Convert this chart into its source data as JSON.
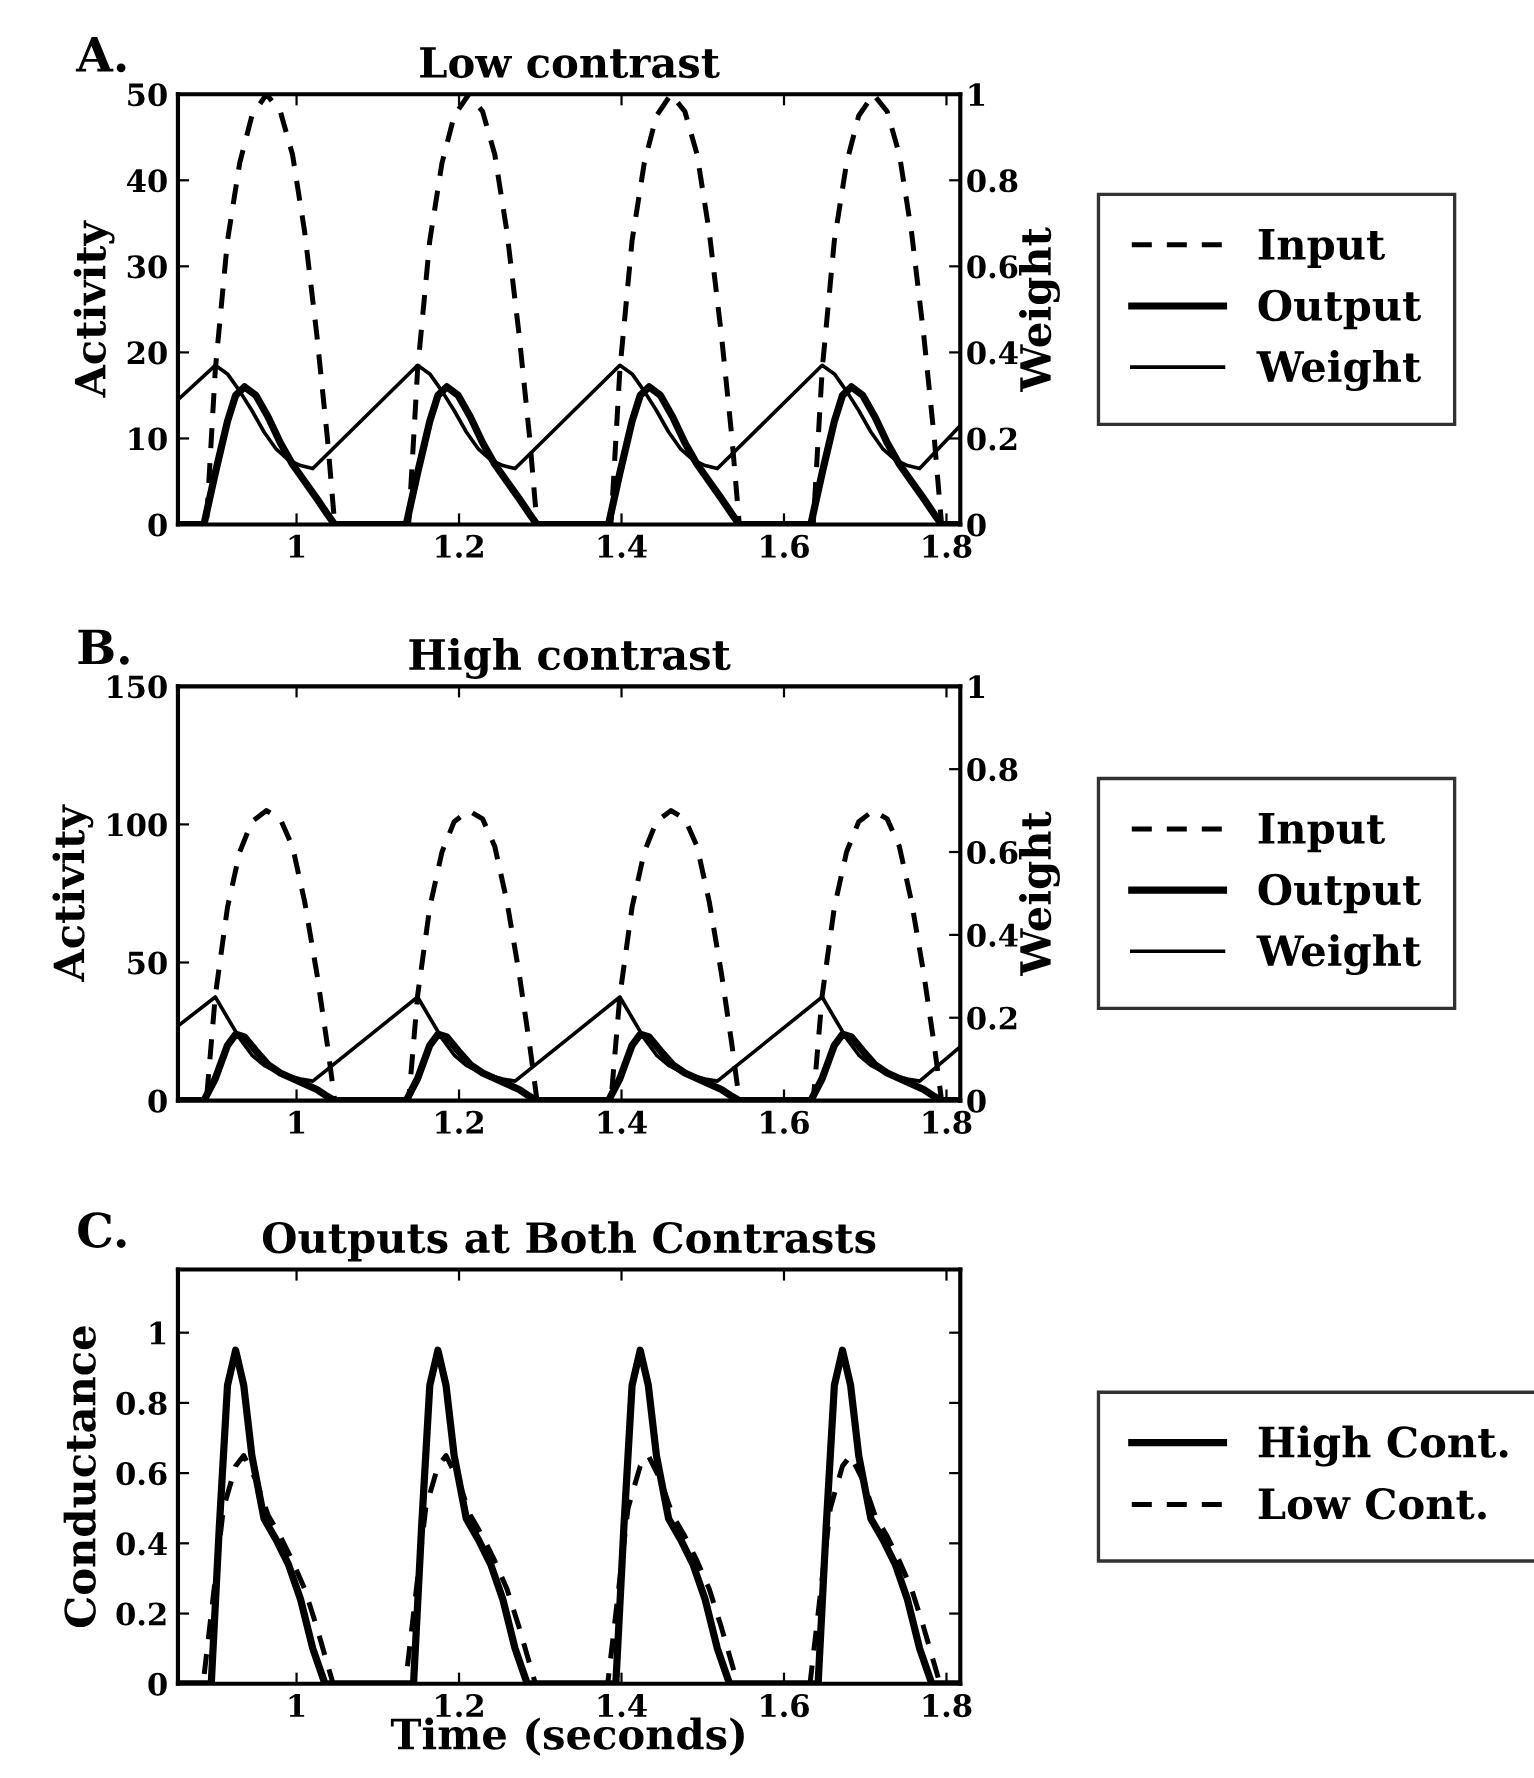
{
  "chart_data": [
    {
      "type": "line",
      "title": "Low contrast",
      "ylabel": "Activity",
      "y2label": "Weight",
      "annotations": [
        "A."
      ],
      "xlim": [
        0.854,
        1.817
      ],
      "xticks": [
        1,
        1.2,
        1.4,
        1.6,
        1.8
      ],
      "ylim": [
        0,
        50
      ],
      "yticks": [
        0,
        10,
        20,
        30,
        40,
        50
      ],
      "y2lim": [
        0,
        1
      ],
      "y2ticks": [
        0,
        0.2,
        0.4,
        0.6,
        0.8,
        1
      ],
      "grid": false,
      "legend": "right",
      "series": [
        {
          "name": "Input",
          "color": "#000000",
          "line_style": "dashed",
          "x": [
            0.854,
            0.889,
            0.9,
            0.915,
            0.93,
            0.945,
            0.963,
            0.98,
            0.995,
            1.01,
            1.025,
            1.038,
            1.047,
            1.138,
            1.149,
            1.164,
            1.179,
            1.194,
            1.212,
            1.229,
            1.244,
            1.259,
            1.274,
            1.287,
            1.296,
            1.387,
            1.398,
            1.413,
            1.428,
            1.443,
            1.461,
            1.478,
            1.493,
            1.508,
            1.523,
            1.536,
            1.545,
            1.636,
            1.647,
            1.662,
            1.677,
            1.692,
            1.71,
            1.727,
            1.742,
            1.757,
            1.772,
            1.785,
            1.794,
            1.817
          ],
          "values": [
            0,
            0,
            18,
            33,
            42,
            47.5,
            50,
            48,
            43,
            34,
            22,
            10,
            0,
            0,
            18,
            33,
            42,
            47.5,
            50,
            48,
            43,
            34,
            22,
            10,
            0,
            0,
            18,
            33,
            42,
            47.5,
            50,
            48,
            43,
            34,
            22,
            10,
            0,
            0,
            18,
            33,
            42,
            47.5,
            50,
            48,
            43,
            34,
            22,
            10,
            0,
            0
          ]
        },
        {
          "name": "Output",
          "color": "#000000",
          "line_style": "solid",
          "x": [
            0.854,
            0.886,
            0.9,
            0.915,
            0.925,
            0.936,
            0.95,
            0.965,
            0.98,
            0.995,
            1.01,
            1.025,
            1.038,
            1.047,
            1.135,
            1.149,
            1.164,
            1.174,
            1.185,
            1.199,
            1.214,
            1.229,
            1.244,
            1.259,
            1.274,
            1.287,
            1.296,
            1.384,
            1.398,
            1.413,
            1.423,
            1.434,
            1.448,
            1.463,
            1.478,
            1.493,
            1.508,
            1.523,
            1.536,
            1.545,
            1.633,
            1.647,
            1.662,
            1.672,
            1.683,
            1.697,
            1.712,
            1.727,
            1.742,
            1.757,
            1.772,
            1.785,
            1.794,
            1.817
          ],
          "values": [
            0,
            0,
            6,
            12,
            15,
            16,
            15,
            12.5,
            9.5,
            7,
            5,
            3,
            1.2,
            0,
            0,
            6,
            12,
            15,
            16,
            15,
            12.5,
            9.5,
            7,
            5,
            3,
            1.2,
            0,
            0,
            6,
            12,
            15,
            16,
            15,
            12.5,
            9.5,
            7,
            5,
            3,
            1.2,
            0,
            0,
            6,
            12,
            15,
            16,
            15,
            12.5,
            9.5,
            7,
            5,
            3,
            1.2,
            0,
            0
          ]
        },
        {
          "name": "Weight",
          "color": "#000000",
          "line_style": "solid",
          "axis": "y2",
          "x": [
            0.854,
            0.9,
            0.915,
            0.93,
            0.945,
            0.96,
            0.975,
            0.99,
            1.005,
            1.02,
            1.149,
            1.164,
            1.179,
            1.194,
            1.209,
            1.224,
            1.239,
            1.254,
            1.269,
            1.398,
            1.413,
            1.428,
            1.443,
            1.458,
            1.473,
            1.488,
            1.503,
            1.518,
            1.647,
            1.662,
            1.677,
            1.692,
            1.707,
            1.722,
            1.737,
            1.752,
            1.767,
            1.817
          ],
          "values": [
            0.29,
            0.37,
            0.35,
            0.31,
            0.265,
            0.215,
            0.175,
            0.15,
            0.137,
            0.13,
            0.37,
            0.35,
            0.31,
            0.265,
            0.215,
            0.175,
            0.15,
            0.137,
            0.13,
            0.37,
            0.35,
            0.31,
            0.265,
            0.215,
            0.175,
            0.15,
            0.137,
            0.13,
            0.37,
            0.35,
            0.31,
            0.265,
            0.215,
            0.175,
            0.15,
            0.137,
            0.13,
            0.23
          ]
        }
      ]
    },
    {
      "type": "line",
      "title": "High contrast",
      "ylabel": "Activity",
      "y2label": "Weight",
      "annotations": [
        "B."
      ],
      "xlim": [
        0.854,
        1.817
      ],
      "xticks": [
        1,
        1.2,
        1.4,
        1.6,
        1.8
      ],
      "ylim": [
        0,
        150
      ],
      "yticks": [
        0,
        50,
        100,
        150
      ],
      "y2lim": [
        0,
        1
      ],
      "y2ticks": [
        0,
        0.2,
        0.4,
        0.6,
        0.8,
        1
      ],
      "grid": false,
      "legend": "right",
      "series": [
        {
          "name": "Input",
          "color": "#000000",
          "line_style": "dashed",
          "x": [
            0.854,
            0.889,
            0.9,
            0.915,
            0.93,
            0.945,
            0.963,
            0.98,
            0.995,
            1.01,
            1.025,
            1.038,
            1.047,
            1.138,
            1.149,
            1.164,
            1.179,
            1.194,
            1.212,
            1.229,
            1.244,
            1.259,
            1.274,
            1.287,
            1.296,
            1.387,
            1.398,
            1.413,
            1.428,
            1.443,
            1.461,
            1.478,
            1.493,
            1.508,
            1.523,
            1.536,
            1.545,
            1.636,
            1.647,
            1.662,
            1.677,
            1.692,
            1.71,
            1.727,
            1.742,
            1.757,
            1.772,
            1.785,
            1.794,
            1.817
          ],
          "values": [
            0,
            0,
            38,
            70,
            90,
            101,
            105,
            102,
            92,
            72,
            46,
            20,
            0,
            0,
            38,
            70,
            90,
            101,
            105,
            102,
            92,
            72,
            46,
            20,
            0,
            0,
            38,
            70,
            90,
            101,
            105,
            102,
            92,
            72,
            46,
            20,
            0,
            0,
            38,
            70,
            90,
            101,
            105,
            102,
            92,
            72,
            46,
            20,
            0,
            0
          ]
        },
        {
          "name": "Output",
          "color": "#000000",
          "line_style": "solid",
          "x": [
            0.854,
            0.886,
            0.9,
            0.915,
            0.925,
            0.936,
            0.95,
            0.965,
            0.98,
            0.995,
            1.01,
            1.025,
            1.038,
            1.047,
            1.135,
            1.149,
            1.164,
            1.174,
            1.185,
            1.199,
            1.214,
            1.229,
            1.244,
            1.259,
            1.274,
            1.287,
            1.296,
            1.384,
            1.398,
            1.413,
            1.423,
            1.434,
            1.448,
            1.463,
            1.478,
            1.493,
            1.508,
            1.523,
            1.536,
            1.545,
            1.633,
            1.647,
            1.662,
            1.672,
            1.683,
            1.697,
            1.712,
            1.727,
            1.742,
            1.757,
            1.772,
            1.785,
            1.794,
            1.817
          ],
          "values": [
            0,
            0,
            8,
            20,
            24,
            23,
            18,
            13,
            10,
            8,
            6,
            4,
            1.5,
            0,
            0,
            8,
            20,
            24,
            23,
            18,
            13,
            10,
            8,
            6,
            4,
            1.5,
            0,
            0,
            8,
            20,
            24,
            23,
            18,
            13,
            10,
            8,
            6,
            4,
            1.5,
            0,
            0,
            8,
            20,
            24,
            23,
            18,
            13,
            10,
            8,
            6,
            4,
            1.5,
            0,
            0
          ]
        },
        {
          "name": "Weight",
          "color": "#000000",
          "line_style": "solid",
          "axis": "y2",
          "x": [
            0.854,
            0.9,
            0.915,
            0.93,
            0.945,
            0.96,
            0.975,
            0.99,
            1.005,
            1.02,
            1.149,
            1.164,
            1.179,
            1.194,
            1.209,
            1.224,
            1.239,
            1.254,
            1.269,
            1.398,
            1.413,
            1.428,
            1.443,
            1.458,
            1.473,
            1.488,
            1.503,
            1.518,
            1.647,
            1.662,
            1.677,
            1.692,
            1.707,
            1.722,
            1.737,
            1.752,
            1.767,
            1.817
          ],
          "values": [
            0.18,
            0.25,
            0.2,
            0.15,
            0.11,
            0.085,
            0.07,
            0.06,
            0.052,
            0.047,
            0.25,
            0.2,
            0.15,
            0.11,
            0.085,
            0.07,
            0.06,
            0.052,
            0.047,
            0.25,
            0.2,
            0.15,
            0.11,
            0.085,
            0.07,
            0.06,
            0.052,
            0.047,
            0.25,
            0.2,
            0.15,
            0.11,
            0.085,
            0.07,
            0.06,
            0.052,
            0.047,
            0.13
          ]
        }
      ]
    },
    {
      "type": "line",
      "title": "Outputs at Both Contrasts",
      "ylabel": "Conductance",
      "xlabel": "Time (seconds)",
      "annotations": [
        "C."
      ],
      "xlim": [
        0.854,
        1.817
      ],
      "xticks": [
        1,
        1.2,
        1.4,
        1.6,
        1.8
      ],
      "ylim": [
        0,
        1.18
      ],
      "yticks": [
        0,
        0.2,
        0.4,
        0.6,
        0.8,
        1
      ],
      "grid": false,
      "legend": "right",
      "series": [
        {
          "name": "High Cont.",
          "color": "#000000",
          "line_style": "solid",
          "x": [
            0.854,
            0.895,
            0.905,
            0.915,
            0.925,
            0.935,
            0.945,
            0.96,
            0.975,
            0.99,
            1.005,
            1.02,
            1.035,
            1.144,
            1.154,
            1.164,
            1.174,
            1.184,
            1.194,
            1.209,
            1.224,
            1.239,
            1.254,
            1.269,
            1.284,
            1.393,
            1.403,
            1.413,
            1.423,
            1.433,
            1.443,
            1.458,
            1.473,
            1.488,
            1.503,
            1.518,
            1.533,
            1.642,
            1.652,
            1.662,
            1.672,
            1.682,
            1.692,
            1.707,
            1.722,
            1.737,
            1.752,
            1.767,
            1.782,
            1.817
          ],
          "values": [
            0,
            0,
            0.45,
            0.85,
            0.95,
            0.85,
            0.65,
            0.47,
            0.41,
            0.34,
            0.24,
            0.1,
            0,
            0,
            0.45,
            0.85,
            0.95,
            0.85,
            0.65,
            0.47,
            0.41,
            0.34,
            0.24,
            0.1,
            0,
            0,
            0.45,
            0.85,
            0.95,
            0.85,
            0.65,
            0.47,
            0.41,
            0.34,
            0.24,
            0.1,
            0,
            0,
            0.45,
            0.85,
            0.95,
            0.85,
            0.65,
            0.47,
            0.41,
            0.34,
            0.24,
            0.1,
            0,
            0
          ]
        },
        {
          "name": "Low Cont.",
          "color": "#000000",
          "line_style": "dashed",
          "x": [
            0.854,
            0.885,
            0.895,
            0.91,
            0.925,
            0.935,
            0.95,
            0.965,
            0.98,
            0.995,
            1.01,
            1.025,
            1.045,
            1.134,
            1.144,
            1.159,
            1.174,
            1.184,
            1.199,
            1.214,
            1.229,
            1.244,
            1.259,
            1.274,
            1.294,
            1.383,
            1.393,
            1.408,
            1.423,
            1.433,
            1.448,
            1.463,
            1.478,
            1.493,
            1.508,
            1.523,
            1.543,
            1.632,
            1.642,
            1.657,
            1.672,
            1.682,
            1.697,
            1.712,
            1.727,
            1.742,
            1.757,
            1.772,
            1.792,
            1.817
          ],
          "values": [
            0,
            0,
            0.2,
            0.5,
            0.62,
            0.65,
            0.58,
            0.48,
            0.42,
            0.35,
            0.27,
            0.16,
            0,
            0,
            0.2,
            0.5,
            0.62,
            0.65,
            0.58,
            0.48,
            0.42,
            0.35,
            0.27,
            0.16,
            0,
            0,
            0.2,
            0.5,
            0.62,
            0.65,
            0.58,
            0.48,
            0.42,
            0.35,
            0.27,
            0.16,
            0,
            0,
            0.2,
            0.5,
            0.62,
            0.65,
            0.58,
            0.48,
            0.42,
            0.35,
            0.27,
            0.16,
            0,
            0
          ]
        }
      ]
    }
  ]
}
